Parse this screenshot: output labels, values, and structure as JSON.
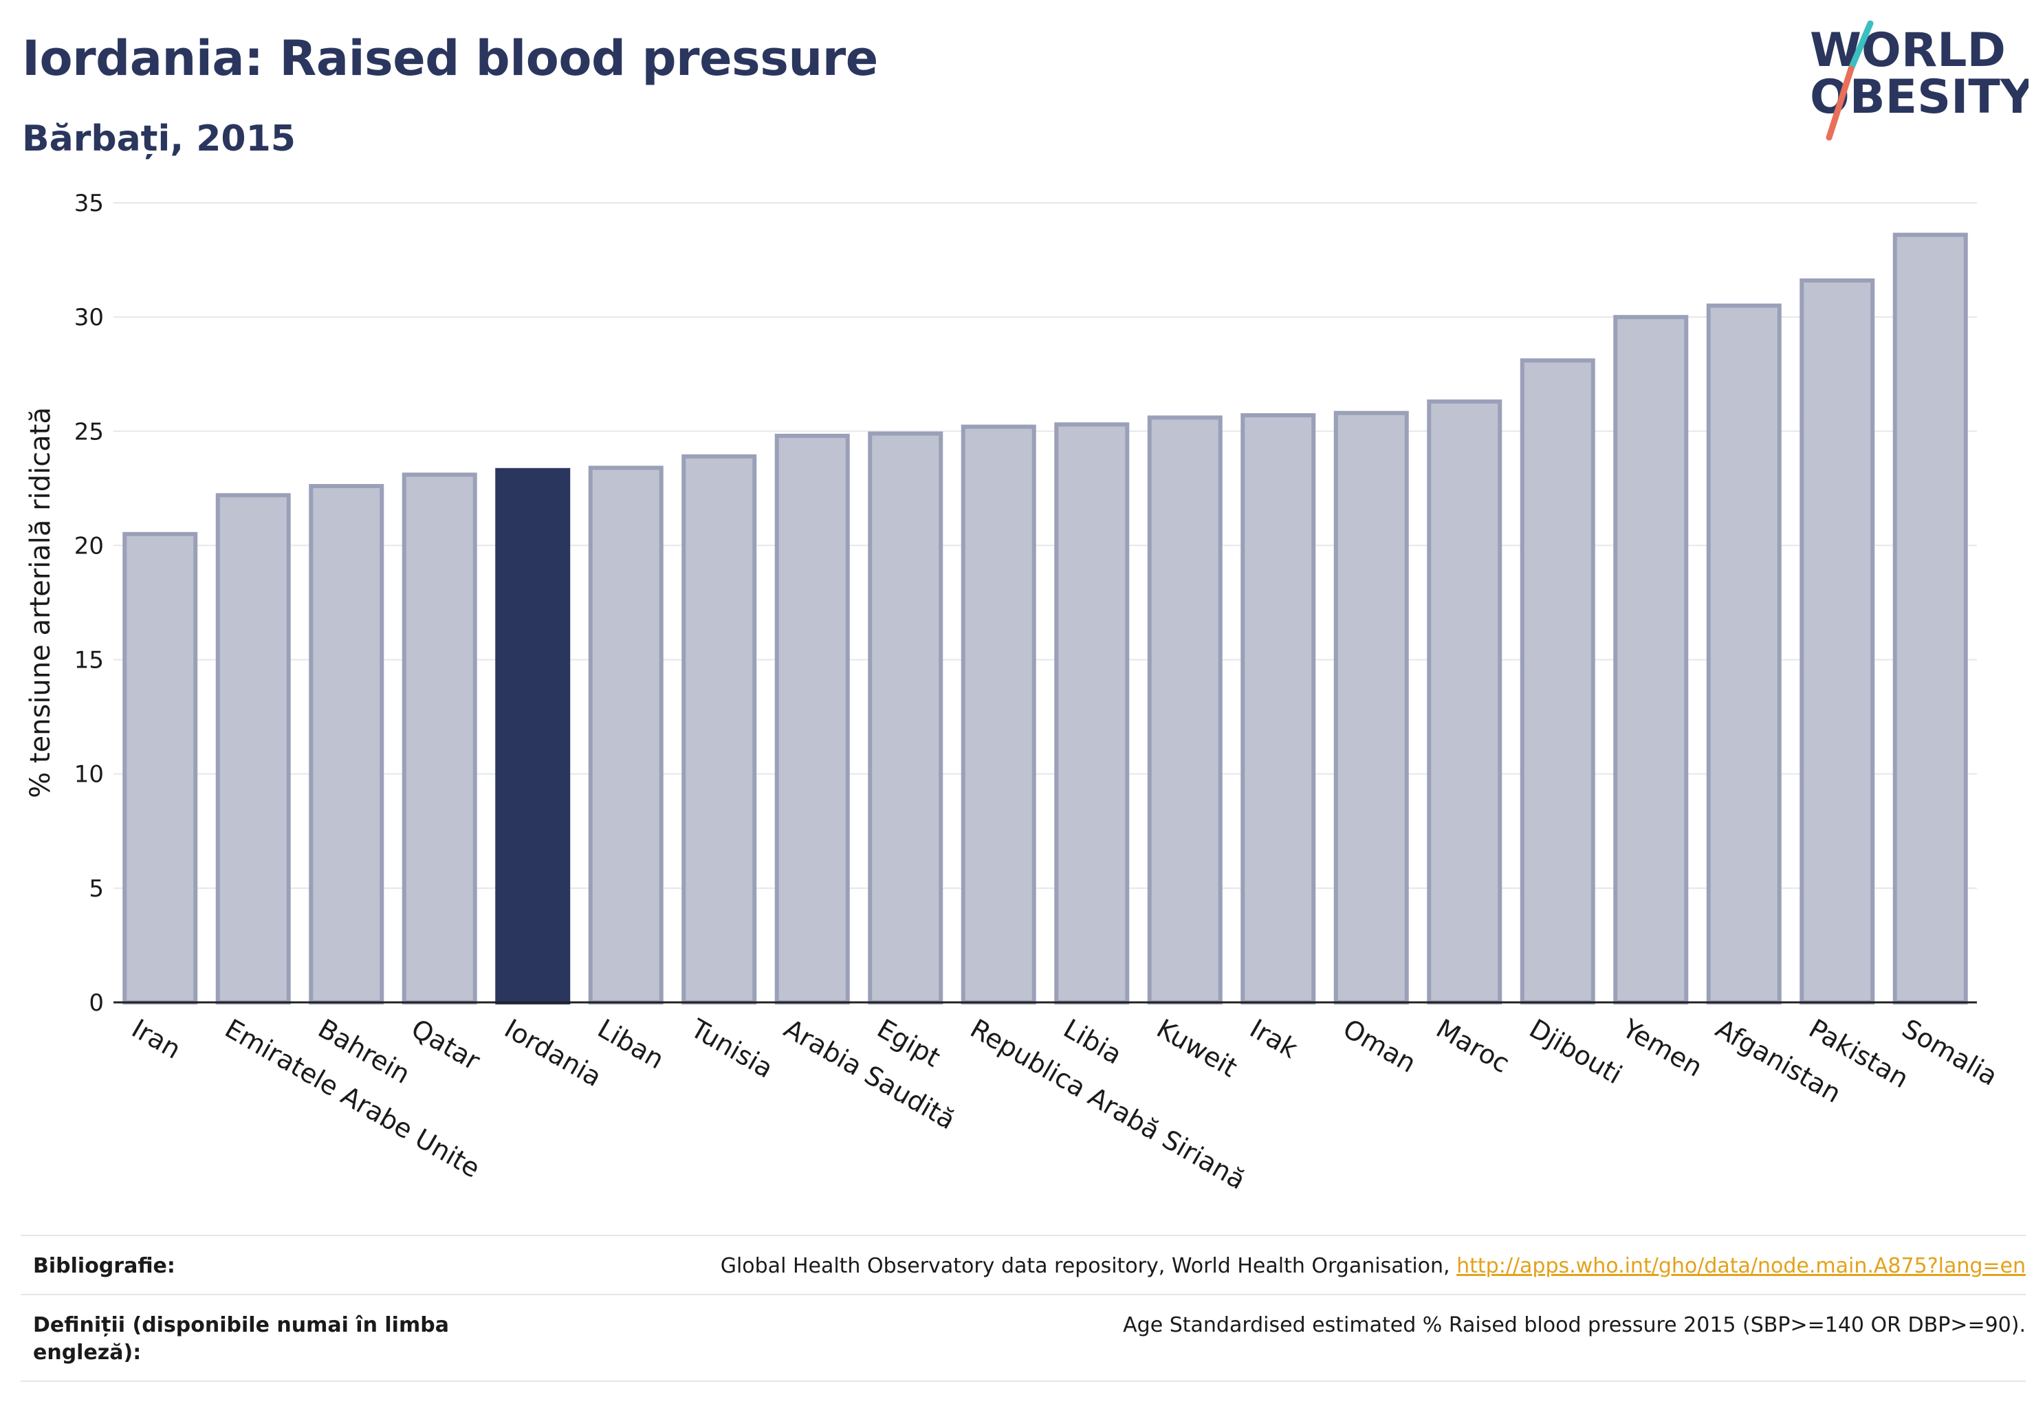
{
  "header": {
    "title": "Iordania: Raised blood pressure",
    "subtitle": "Bărbați, 2015"
  },
  "logo": {
    "line1": "WORLD",
    "line2": "OBESITY",
    "accent_teal": "#3cbfc1",
    "accent_coral": "#e8705a"
  },
  "colors": {
    "bar": "#bfc2d0",
    "bar_stroke": "#9aa0b8",
    "highlight": "#2b365e",
    "grid": "#e6e7ec"
  },
  "chart_data": {
    "type": "bar",
    "ylabel": "% tensiune arterială ridicată",
    "ylim": [
      0,
      35
    ],
    "yticks": [
      0,
      5,
      10,
      15,
      20,
      25,
      30,
      35
    ],
    "grid": true,
    "highlight_category": "Iordania",
    "categories": [
      "Iran",
      "Emiratele Arabe Unite",
      "Bahrein",
      "Qatar",
      "Iordania",
      "Liban",
      "Tunisia",
      "Arabia Saudită",
      "Egipt",
      "Republica Arabă Siriană",
      "Libia",
      "Kuweit",
      "Irak",
      "Oman",
      "Maroc",
      "Djibouti",
      "Yemen",
      "Afganistan",
      "Pakistan",
      "Somalia"
    ],
    "values": [
      20.5,
      22.2,
      22.6,
      23.1,
      23.3,
      23.4,
      23.9,
      24.8,
      24.9,
      25.2,
      25.3,
      25.6,
      25.7,
      25.8,
      26.3,
      28.1,
      30.0,
      30.5,
      31.6,
      33.6
    ]
  },
  "footer": {
    "bibliography_label": "Bibliografie:",
    "bibliography_text": "Global Health Observatory data repository, World Health Organisation,",
    "bibliography_link": "http://apps.who.int/gho/data/node.main.A875?lang=en",
    "definitions_label": "Definiții (disponibile numai în limba engleză):",
    "definitions_text": "Age Standardised estimated % Raised blood pressure 2015 (SBP>=140 OR DBP>=90)."
  }
}
